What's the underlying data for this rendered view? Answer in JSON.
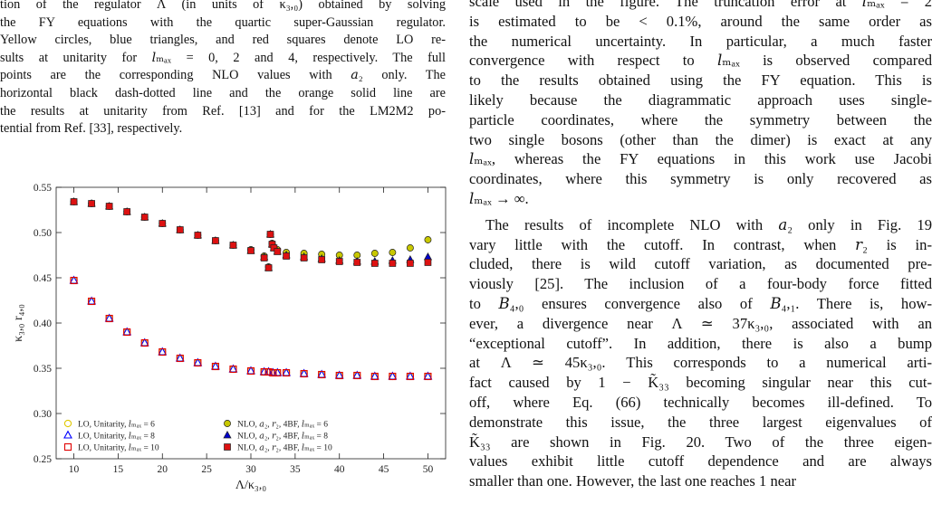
{
  "caption": {
    "lines": [
      "tion of the regulator Λ (in units of κ₃,₀) obtained by solving",
      "the FY equations with the quartic super-Gaussian regulator.",
      "Yellow circles, blue triangles, and red squares denote LO re-",
      "sults at unitarity for 𝑙ₘₐₓ = 0, 2 and 4, respectively. The full",
      "points are the corresponding NLO values with 𝑎₂ only. The",
      "horizontal black dash-dotted line and the orange solid line are",
      "the results at unitarity from Ref. [13] and for the LM2M2 po-",
      "tential from Ref. [33], respectively."
    ]
  },
  "chart_data": {
    "type": "scatter",
    "xlabel": "Λ/κ₃,₀",
    "ylabel": "κ₃,₀ r₄,₀",
    "xlim": [
      8,
      52
    ],
    "ylim": [
      0.25,
      0.55
    ],
    "xticks": [
      10,
      15,
      20,
      25,
      30,
      35,
      40,
      45,
      50
    ],
    "yticks": [
      0.25,
      0.3,
      0.35,
      0.4,
      0.45,
      0.5,
      0.55
    ],
    "series": [
      {
        "name": "LO, Unitarity, 𝑙ₘₐₓ = 6",
        "color": "#e0c800",
        "marker": "circle",
        "filled": false,
        "x": [
          10,
          12,
          14,
          16,
          18,
          20,
          22,
          24,
          26,
          28,
          30,
          31.5,
          32,
          32.5,
          33,
          34,
          36,
          38,
          40,
          42,
          44,
          46,
          48,
          50
        ],
        "values": [
          0.447,
          0.424,
          0.405,
          0.39,
          0.378,
          0.368,
          0.361,
          0.356,
          0.352,
          0.349,
          0.347,
          0.346,
          0.346,
          0.345,
          0.345,
          0.345,
          0.344,
          0.343,
          0.342,
          0.342,
          0.341,
          0.341,
          0.341,
          0.341
        ]
      },
      {
        "name": "LO, Unitarity, 𝑙ₘₐₓ = 8",
        "color": "#0000ff",
        "marker": "triangle",
        "filled": false,
        "x": [
          10,
          12,
          14,
          16,
          18,
          20,
          22,
          24,
          26,
          28,
          30,
          31.5,
          32,
          32.5,
          33,
          34,
          36,
          38,
          40,
          42,
          44,
          46,
          48,
          50
        ],
        "values": [
          0.447,
          0.424,
          0.405,
          0.39,
          0.378,
          0.368,
          0.361,
          0.356,
          0.352,
          0.349,
          0.347,
          0.346,
          0.346,
          0.345,
          0.345,
          0.345,
          0.344,
          0.343,
          0.342,
          0.342,
          0.341,
          0.341,
          0.341,
          0.341
        ]
      },
      {
        "name": "LO, Unitarity, 𝑙ₘₐₓ = 10",
        "color": "#e00000",
        "marker": "square",
        "filled": false,
        "x": [
          10,
          12,
          14,
          16,
          18,
          20,
          22,
          24,
          26,
          28,
          30,
          31.5,
          32,
          32.5,
          33,
          34,
          36,
          38,
          40,
          42,
          44,
          46,
          48,
          50
        ],
        "values": [
          0.447,
          0.424,
          0.405,
          0.39,
          0.378,
          0.368,
          0.361,
          0.356,
          0.352,
          0.349,
          0.347,
          0.346,
          0.346,
          0.345,
          0.345,
          0.345,
          0.344,
          0.343,
          0.342,
          0.342,
          0.341,
          0.341,
          0.341,
          0.341
        ]
      },
      {
        "name": "NLO, 𝑎₂, 𝑟₂, 4BF, 𝑙ₘₐₓ = 6",
        "color": "#c8c800",
        "marker": "circle",
        "filled": true,
        "x": [
          10,
          12,
          14,
          16,
          18,
          20,
          22,
          24,
          26,
          28,
          30,
          31.5,
          32,
          32.2,
          32.4,
          32.6,
          33,
          34,
          36,
          38,
          40,
          42,
          44,
          46,
          48,
          50
        ],
        "values": [
          0.534,
          0.532,
          0.529,
          0.523,
          0.517,
          0.51,
          0.503,
          0.497,
          0.491,
          0.486,
          0.481,
          0.474,
          0.462,
          0.498,
          0.488,
          0.484,
          0.481,
          0.478,
          0.477,
          0.476,
          0.475,
          0.475,
          0.477,
          0.478,
          0.483,
          0.492
        ]
      },
      {
        "name": "NLO, 𝑎₂, 𝑟₂, 4BF, 𝑙ₘₐₓ = 8",
        "color": "#0000cc",
        "marker": "triangle",
        "filled": true,
        "x": [
          10,
          12,
          14,
          16,
          18,
          20,
          22,
          24,
          26,
          28,
          30,
          31.5,
          32,
          32.2,
          32.4,
          32.6,
          33,
          34,
          36,
          38,
          40,
          42,
          44,
          46,
          48,
          50
        ],
        "values": [
          0.534,
          0.532,
          0.529,
          0.523,
          0.517,
          0.51,
          0.503,
          0.497,
          0.491,
          0.486,
          0.48,
          0.473,
          0.461,
          0.498,
          0.487,
          0.483,
          0.479,
          0.475,
          0.473,
          0.471,
          0.469,
          0.468,
          0.468,
          0.469,
          0.47,
          0.473
        ]
      },
      {
        "name": "NLO, 𝑎₂, 𝑟₂, 4BF, 𝑙ₘₐₓ = 10",
        "color": "#dd1111",
        "marker": "square",
        "filled": true,
        "x": [
          10,
          12,
          14,
          16,
          18,
          20,
          22,
          24,
          26,
          28,
          30,
          31.5,
          32,
          32.2,
          32.4,
          32.6,
          33,
          34,
          36,
          38,
          40,
          42,
          44,
          46,
          48,
          50
        ],
        "values": [
          0.534,
          0.532,
          0.529,
          0.523,
          0.517,
          0.51,
          0.503,
          0.497,
          0.491,
          0.486,
          0.48,
          0.472,
          0.461,
          0.498,
          0.487,
          0.483,
          0.479,
          0.474,
          0.472,
          0.47,
          0.468,
          0.467,
          0.466,
          0.466,
          0.466,
          0.467
        ]
      }
    ]
  },
  "body": {
    "paragraphs": [
      [
        "scale used in the figure. The truncation error at 𝑙ₘₐₓ = 2",
        "is estimated to be < 0.1%, around the same order as",
        "the numerical uncertainty. In particular, a much faster",
        "convergence with respect to 𝑙ₘₐₓ is observed compared",
        "to the results obtained using the FY equation. This is",
        "likely because the diagrammatic approach uses single-",
        "particle coordinates, where the symmetry between the",
        "two single bosons (other than the dimer) is exact at any",
        "𝑙ₘₐₓ, whereas the FY equations in this work use Jacobi",
        "coordinates, where this symmetry is only recovered as",
        "𝑙ₘₐₓ → ∞."
      ],
      [
        "The results of incomplete NLO with 𝑎₂ only in Fig. 19",
        "vary little with the cutoff. In contrast, when 𝑟₂ is in-",
        "cluded, there is wild cutoff variation, as documented pre-",
        "viously [25]. The inclusion of a four-body force fitted",
        "to 𝐵₄,₀ ensures convergence also of 𝐵₄,₁. There is, how-",
        "ever, a divergence near Λ ≃ 37κ₃,₀, associated with an",
        "“exceptional cutoff”. In addition, there is also a bump",
        "at Λ ≃ 45κ₃,₀. This corresponds to a numerical arti-",
        "fact caused by 1 − K̃₃₃ becoming singular near this cut-",
        "off, where Eq. (66) technically becomes ill-defined. To",
        "demonstrate this issue, the three largest eigenvalues of",
        "K̃₃₃ are shown in Fig. 20. Two of the three eigen-",
        "values exhibit little cutoff dependence and are always",
        "smaller than one. However, the last one reaches 1 near"
      ]
    ]
  }
}
